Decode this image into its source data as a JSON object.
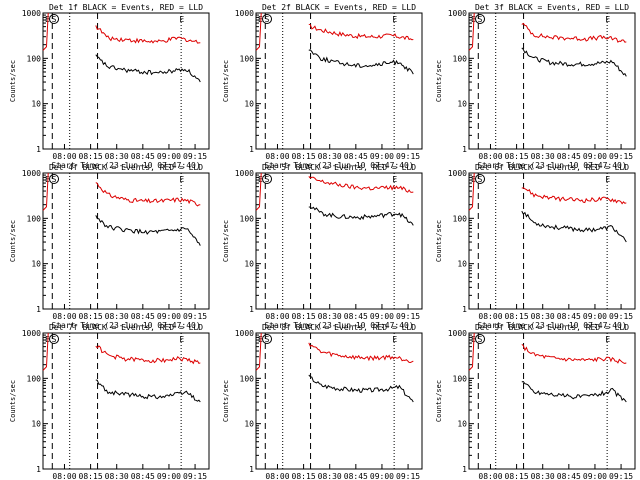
{
  "figure": {
    "ylabel": "Counts/sec",
    "xlabel": "Start Time (23-Jun-10 07:47:40)",
    "time_ticks": [
      "08:00",
      "08:15",
      "08:30",
      "08:45",
      "09:00",
      "09:15"
    ],
    "y_ticks": [
      "1",
      "10",
      "100",
      "1000"
    ],
    "markers": {
      "left_E": "E",
      "left_S": "S",
      "right_E": "E"
    },
    "colors": {
      "events": "#000000",
      "lld": "#dd0000"
    }
  },
  "chart_data": [
    {
      "type": "line",
      "title": "Det 1f BLACK = Events, RED = LLD",
      "xlabel": "Start Time (23-Jun-10 07:47:40)",
      "ylabel": "Counts/sec",
      "yscale": "log",
      "ylim": [
        1,
        1000
      ],
      "x": [
        "08:18",
        "08:25",
        "08:35",
        "08:45",
        "08:55",
        "09:05",
        "09:10",
        "09:18"
      ],
      "series": [
        {
          "name": "LLD",
          "color": "#dd0000",
          "values": [
            520,
            280,
            260,
            240,
            230,
            280,
            260,
            220
          ]
        },
        {
          "name": "Events",
          "color": "#000000",
          "values": [
            110,
            65,
            55,
            50,
            48,
            55,
            58,
            30
          ]
        }
      ]
    },
    {
      "type": "line",
      "title": "Det 2f BLACK = Events, RED = LLD",
      "xlabel": "Start Time (23-Jun-10 07:47:40)",
      "ylabel": "Counts/sec",
      "yscale": "log",
      "ylim": [
        1,
        1000
      ],
      "x": [
        "08:18",
        "08:25",
        "08:35",
        "08:45",
        "08:55",
        "09:05",
        "09:10",
        "09:18"
      ],
      "series": [
        {
          "name": "LLD",
          "color": "#dd0000",
          "values": [
            520,
            420,
            350,
            310,
            300,
            320,
            300,
            260
          ]
        },
        {
          "name": "Events",
          "color": "#000000",
          "values": [
            160,
            100,
            80,
            70,
            70,
            80,
            85,
            45
          ]
        }
      ]
    },
    {
      "type": "line",
      "title": "Det 3f BLACK = Events, RED = LLD",
      "xlabel": "Start Time (23-Jun-10 07:47:40)",
      "ylabel": "Counts/sec",
      "yscale": "log",
      "ylim": [
        1,
        1000
      ],
      "x": [
        "08:18",
        "08:25",
        "08:35",
        "08:45",
        "08:55",
        "09:05",
        "09:10",
        "09:18"
      ],
      "series": [
        {
          "name": "LLD",
          "color": "#dd0000",
          "values": [
            600,
            330,
            290,
            280,
            270,
            290,
            270,
            230
          ]
        },
        {
          "name": "Events",
          "color": "#000000",
          "values": [
            170,
            100,
            80,
            75,
            75,
            80,
            85,
            40
          ]
        }
      ]
    },
    {
      "type": "line",
      "title": "Det 4f BLACK = Events, RED = LLD",
      "xlabel": "Start Time (23-Jun-10 07:47:40)",
      "ylabel": "Counts/sec",
      "yscale": "log",
      "ylim": [
        1,
        1000
      ],
      "x": [
        "08:18",
        "08:25",
        "08:35",
        "08:45",
        "08:55",
        "09:05",
        "09:10",
        "09:18"
      ],
      "series": [
        {
          "name": "LLD",
          "color": "#dd0000",
          "values": [
            620,
            330,
            260,
            240,
            240,
            260,
            250,
            200
          ]
        },
        {
          "name": "Events",
          "color": "#000000",
          "values": [
            110,
            65,
            55,
            50,
            50,
            55,
            60,
            25
          ]
        }
      ]
    },
    {
      "type": "line",
      "title": "Det 5f BLACK = Events, RED = LLD",
      "xlabel": "Start Time (23-Jun-10 07:47:40)",
      "ylabel": "Counts/sec",
      "yscale": "log",
      "ylim": [
        1,
        1000
      ],
      "x": [
        "08:18",
        "08:25",
        "08:35",
        "08:45",
        "08:55",
        "09:05",
        "09:10",
        "09:18"
      ],
      "series": [
        {
          "name": "LLD",
          "color": "#dd0000",
          "values": [
            800,
            650,
            550,
            480,
            460,
            480,
            470,
            380
          ]
        },
        {
          "name": "Events",
          "color": "#000000",
          "values": [
            200,
            130,
            110,
            105,
            110,
            125,
            130,
            70
          ]
        }
      ]
    },
    {
      "type": "line",
      "title": "Det 6f BLACK = Events, RED = LLD",
      "xlabel": "Start Time (23-Jun-10 07:47:40)",
      "ylabel": "Counts/sec",
      "yscale": "log",
      "ylim": [
        1,
        1000
      ],
      "x": [
        "08:18",
        "08:25",
        "08:35",
        "08:45",
        "08:55",
        "09:05",
        "09:10",
        "09:18"
      ],
      "series": [
        {
          "name": "LLD",
          "color": "#dd0000",
          "values": [
            520,
            330,
            280,
            260,
            250,
            270,
            260,
            220
          ]
        },
        {
          "name": "Events",
          "color": "#000000",
          "values": [
            150,
            80,
            65,
            60,
            55,
            60,
            65,
            30
          ]
        }
      ]
    },
    {
      "type": "line",
      "title": "Det 7f BLACK = Events, RED = LLD",
      "xlabel": "Start Time (23-Jun-10 07:47:40)",
      "ylabel": "Counts/sec",
      "yscale": "log",
      "ylim": [
        1,
        1000
      ],
      "x": [
        "08:18",
        "08:25",
        "08:35",
        "08:45",
        "08:55",
        "09:05",
        "09:10",
        "09:18"
      ],
      "series": [
        {
          "name": "LLD",
          "color": "#dd0000",
          "values": [
            540,
            320,
            270,
            250,
            250,
            270,
            260,
            220
          ]
        },
        {
          "name": "Events",
          "color": "#000000",
          "values": [
            90,
            50,
            45,
            40,
            40,
            45,
            50,
            30
          ]
        }
      ]
    },
    {
      "type": "line",
      "title": "Det 8f BLACK = Events, RED = LLD",
      "xlabel": "Start Time (23-Jun-10 07:47:40)",
      "ylabel": "Counts/sec",
      "yscale": "log",
      "ylim": [
        1,
        1000
      ],
      "x": [
        "08:18",
        "08:25",
        "08:35",
        "08:45",
        "08:55",
        "09:05",
        "09:10",
        "09:18"
      ],
      "series": [
        {
          "name": "LLD",
          "color": "#dd0000",
          "values": [
            600,
            380,
            320,
            290,
            280,
            300,
            280,
            240
          ]
        },
        {
          "name": "Events",
          "color": "#000000",
          "values": [
            110,
            70,
            60,
            55,
            55,
            60,
            65,
            30
          ]
        }
      ]
    },
    {
      "type": "line",
      "title": "Det 9f BLACK = Events, RED = LLD",
      "xlabel": "Start Time (23-Jun-10 07:47:40)",
      "ylabel": "Counts/sec",
      "yscale": "log",
      "ylim": [
        1,
        1000
      ],
      "x": [
        "08:18",
        "08:25",
        "08:35",
        "08:45",
        "08:55",
        "09:05",
        "09:10",
        "09:18"
      ],
      "series": [
        {
          "name": "LLD",
          "color": "#dd0000",
          "values": [
            520,
            330,
            280,
            260,
            250,
            270,
            260,
            220
          ]
        },
        {
          "name": "Events",
          "color": "#000000",
          "values": [
            90,
            50,
            45,
            40,
            40,
            48,
            55,
            30
          ]
        }
      ]
    }
  ]
}
